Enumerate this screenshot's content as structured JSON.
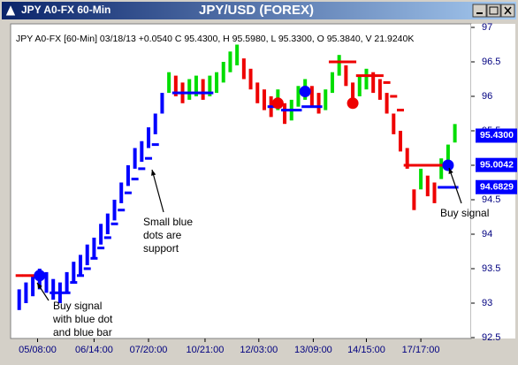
{
  "window": {
    "title": "JPY A0-FX 60-Min"
  },
  "chart_data": {
    "type": "bar",
    "title": "JPY/USD (FOREX)",
    "info": "JPY A0-FX [60-Min] 03/18/13 +0.0540 C 95.4300, H 95.5980, L 95.3300, O 95.3840, V 21.9240K",
    "xlim": [
      -1,
      66
    ],
    "xticks": [
      {
        "value": 2.7,
        "label": "05/08:00"
      },
      {
        "value": 11,
        "label": "06/14:00"
      },
      {
        "value": 19,
        "label": "07/20:00"
      },
      {
        "value": 27.3,
        "label": "10/21:00"
      },
      {
        "value": 35.2,
        "label": "12/03:00"
      },
      {
        "value": 43.2,
        "label": "13/09:00"
      },
      {
        "value": 51,
        "label": "14/15:00"
      },
      {
        "value": 59,
        "label": "17/17:00"
      }
    ],
    "ylim": [
      92.5,
      97
    ],
    "yticks": [
      97,
      96.5,
      96,
      95.5,
      95,
      94.5,
      94,
      93.5,
      93,
      92.5
    ],
    "trend_color": "#0000ff",
    "up_color": "#00dd00",
    "down_color": "#ee0000",
    "trend_bars": 22,
    "highs": [
      93.2,
      93.3,
      93.4,
      93.5,
      93.45,
      93.35,
      93.3,
      93.45,
      93.6,
      93.7,
      93.85,
      93.95,
      94.15,
      94.3,
      94.5,
      94.75,
      95.0,
      95.25,
      95.35,
      95.55,
      95.75,
      96.05,
      96.35,
      96.3,
      96.2,
      96.25,
      96.3,
      96.25,
      96.3,
      96.35,
      96.5,
      96.65,
      96.75,
      96.55,
      96.4,
      96.2,
      96.1,
      96.0,
      96.1,
      95.9,
      95.95,
      96.15,
      96.25,
      96.15,
      96.05,
      96.1,
      96.35,
      96.6,
      96.45,
      96.2,
      96.3,
      96.4,
      96.35,
      96.25,
      96.05,
      95.75,
      95.5,
      95.25,
      94.65,
      94.95,
      94.85,
      94.75,
      95.1,
      95.3,
      95.598
    ],
    "lows": [
      92.9,
      93.0,
      93.1,
      93.2,
      93.15,
      93.05,
      93.0,
      93.15,
      93.3,
      93.4,
      93.55,
      93.65,
      93.85,
      94.0,
      94.2,
      94.45,
      94.7,
      94.95,
      95.05,
      95.25,
      95.45,
      95.75,
      96.05,
      96.0,
      95.9,
      95.95,
      96.0,
      95.95,
      96.0,
      96.05,
      96.2,
      96.35,
      96.45,
      96.25,
      96.1,
      95.9,
      95.8,
      95.7,
      95.8,
      95.6,
      95.65,
      95.85,
      95.95,
      95.85,
      95.75,
      95.8,
      96.05,
      96.3,
      96.15,
      95.9,
      96.0,
      96.1,
      96.05,
      95.95,
      95.75,
      95.45,
      95.2,
      94.95,
      94.35,
      94.65,
      94.55,
      94.45,
      94.8,
      95.0,
      95.33
    ],
    "support": {
      "color": "#0000ff",
      "x": [
        5,
        6,
        7,
        8,
        9,
        10,
        11,
        12,
        13,
        14,
        15,
        16,
        17,
        18,
        19,
        20,
        23,
        24,
        25,
        26,
        27,
        28,
        37,
        38,
        39,
        40,
        41,
        42,
        43,
        44,
        62,
        63,
        64
      ],
      "values": [
        93.15,
        93.15,
        93.15,
        93.3,
        93.4,
        93.5,
        93.65,
        93.8,
        93.95,
        94.15,
        94.35,
        94.6,
        94.8,
        94.95,
        95.1,
        95.3,
        96.05,
        96.05,
        96.05,
        96.05,
        96.05,
        96.05,
        95.85,
        95.85,
        95.8,
        95.8,
        95.8,
        95.85,
        95.85,
        95.85,
        94.68,
        94.68,
        94.68
      ]
    },
    "resistance": {
      "color": "#ee0000",
      "x": [
        0,
        1,
        2,
        46,
        47,
        48,
        49,
        50,
        51,
        52,
        53,
        54,
        55,
        56,
        57,
        58,
        59,
        60,
        61,
        62,
        63
      ],
      "values": [
        93.4,
        93.4,
        93.4,
        96.5,
        96.5,
        96.5,
        96.5,
        96.3,
        96.3,
        96.3,
        96.3,
        96.2,
        96.0,
        95.8,
        95.0,
        95.0,
        95.0,
        95.0,
        95.0,
        95.0,
        95.0
      ]
    },
    "signals": [
      {
        "x": 3,
        "value": 93.4,
        "color": "#0000ff"
      },
      {
        "x": 38,
        "value": 95.9,
        "color": "#ee0000"
      },
      {
        "x": 42,
        "value": 96.07,
        "color": "#0000ff"
      },
      {
        "x": 49,
        "value": 95.9,
        "color": "#ee0000"
      },
      {
        "x": 63,
        "value": 95.0,
        "color": "#0000ff"
      }
    ],
    "price_labels": [
      {
        "value": 95.43,
        "label": "95.4300",
        "color": "#0000ff"
      },
      {
        "value": 95.0042,
        "label": "95.0042",
        "color": "#0000ff"
      },
      {
        "value": 94.6829,
        "label": "94.6829",
        "color": "#0000ff"
      }
    ],
    "annotations": {
      "support_note": [
        "Small blue",
        "dots are",
        "support"
      ],
      "buy_note": [
        "Buy signal",
        "with blue dot",
        "and blue bar"
      ],
      "buy_signal": [
        "Buy signal"
      ]
    }
  }
}
